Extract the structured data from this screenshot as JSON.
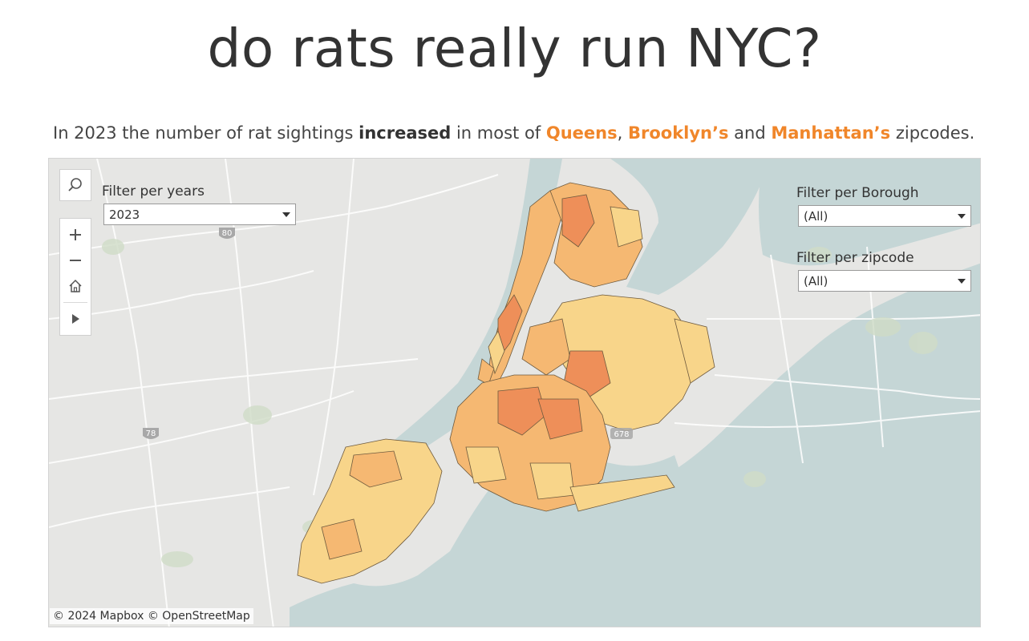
{
  "title": "do rats really run NYC?",
  "subtitle": {
    "part1": "In 2023 the number of rat sightings ",
    "emph": "increased",
    "part2": " in most of ",
    "queens": "Queens",
    "comma": ", ",
    "brooklyn": "Brooklyn’s",
    "and": " and ",
    "manhattan": "Manhattan’s",
    "part3": " zipcodes."
  },
  "filters": {
    "years": {
      "label": "Filter per years",
      "value": "2023"
    },
    "borough": {
      "label": "Filter per Borough",
      "value": "(All)"
    },
    "zipcode": {
      "label": "Filter per zipcode",
      "value": "(All)"
    }
  },
  "map": {
    "highway_shields": [
      "80",
      "78",
      "678"
    ],
    "attribution": "© 2024 Mapbox  © OpenStreetMap",
    "colors": {
      "water": "#c5d6d6",
      "land": "#e6e6e4",
      "low": "#f8d58a",
      "mid": "#f5b872",
      "high": "#ee8f59",
      "highlight": "#f0862a"
    }
  },
  "tools": [
    "search-icon",
    "zoom-in-icon",
    "zoom-out-icon",
    "home-icon",
    "play-icon"
  ]
}
